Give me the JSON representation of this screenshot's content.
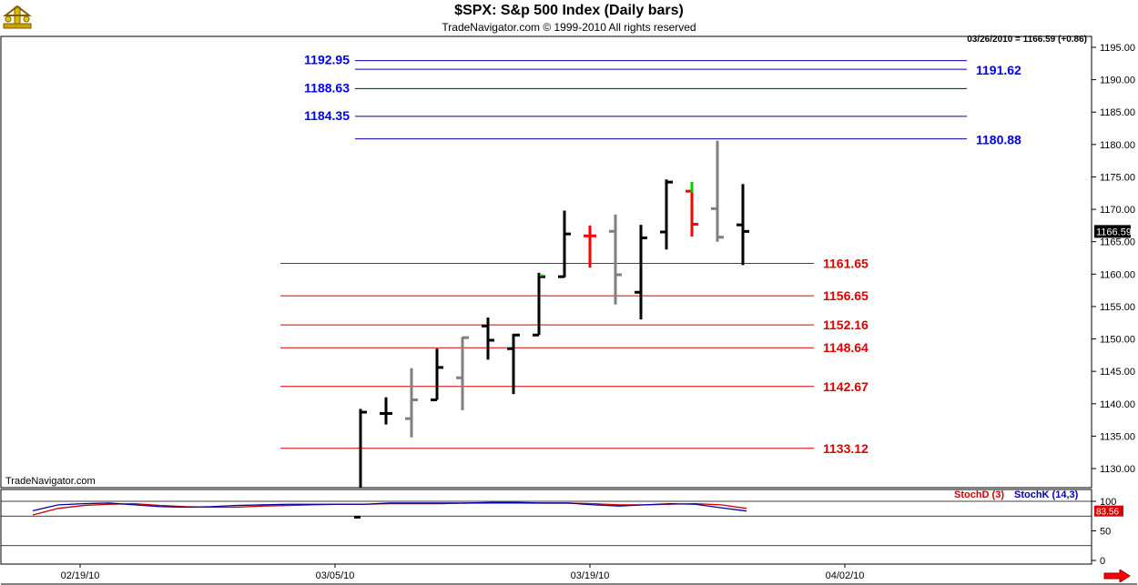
{
  "header": {
    "title": "$SPX:  S&p 500 Index  (Daily bars)",
    "copyright": "TradeNavigator.com © 1999-2010 All rights reserved",
    "readout": "03/26/2010 = 1166.59 (+0.86)",
    "brand": "TradeNavigator.com"
  },
  "colors": {
    "up_bar": "#000000",
    "down_bar": "#808080",
    "red_bar": "#ff0000",
    "resistance": "#0000aa",
    "resistance_label": "#0000ee",
    "support": "#dd0000",
    "support_label": "#dd0000",
    "stoch_d": "#cc0000",
    "stoch_k": "#0000aa",
    "accent_green": "#00cc00"
  },
  "icons": {
    "logo": "trade-navigator-logo-icon",
    "nav": "scroll-right-arrow-icon"
  },
  "chart_data": [
    {
      "type": "ohlc",
      "title": "$SPX:  S&p 500 Index  (Daily bars)",
      "ylim": [
        1126,
        1197
      ],
      "y_ticks": [
        1130,
        1135,
        1140,
        1145,
        1150,
        1155,
        1160,
        1165,
        1170,
        1175,
        1180,
        1185,
        1190,
        1195
      ],
      "y_tick_labels": [
        "1130.00",
        "1135.00",
        "1140.00",
        "1145.00",
        "1150.00",
        "1155.00",
        "1160.00",
        "1165.00",
        "1170.00",
        "1175.00",
        "1180.00",
        "1185.00",
        "1190.00",
        "1195.00"
      ],
      "x_tick_labels": [
        {
          "label": "02/19/10",
          "day": 0
        },
        {
          "label": "03/05/10",
          "day": 10
        },
        {
          "label": "03/19/10",
          "day": 20
        },
        {
          "label": "04/02/10",
          "day": 30
        }
      ],
      "last_value_label": "1166.59",
      "bars": [
        {
          "day": 11,
          "o": 1122.5,
          "h": 1139.2,
          "l": 1122.5,
          "c": 1138.7,
          "color": "up"
        },
        {
          "day": 12,
          "o": 1138.5,
          "h": 1141.0,
          "l": 1136.8,
          "c": 1138.5,
          "color": "up"
        },
        {
          "day": 13,
          "o": 1137.7,
          "h": 1145.5,
          "l": 1134.8,
          "c": 1140.6,
          "color": "down"
        },
        {
          "day": 14,
          "o": 1140.6,
          "h": 1148.5,
          "l": 1140.6,
          "c": 1145.6,
          "color": "up"
        },
        {
          "day": 15,
          "o": 1144.0,
          "h": 1150.3,
          "l": 1139.0,
          "c": 1150.2,
          "color": "down"
        },
        {
          "day": 16,
          "o": 1152.0,
          "h": 1153.3,
          "l": 1146.8,
          "c": 1149.8,
          "color": "up"
        },
        {
          "day": 17,
          "o": 1148.5,
          "h": 1150.8,
          "l": 1141.5,
          "c": 1150.6,
          "color": "up"
        },
        {
          "day": 18,
          "o": 1150.6,
          "h": 1160.2,
          "l": 1150.6,
          "c": 1159.6,
          "color": "up"
        },
        {
          "day": 19,
          "o": 1159.6,
          "h": 1169.8,
          "l": 1159.5,
          "c": 1166.2,
          "color": "up"
        },
        {
          "day": 20,
          "o": 1165.9,
          "h": 1167.5,
          "l": 1161.0,
          "c": 1165.9,
          "color": "red"
        },
        {
          "day": 21,
          "o": 1166.6,
          "h": 1169.2,
          "l": 1155.3,
          "c": 1159.9,
          "color": "down"
        },
        {
          "day": 22,
          "o": 1157.2,
          "h": 1167.6,
          "l": 1153.0,
          "c": 1165.6,
          "color": "up"
        },
        {
          "day": 23,
          "o": 1166.5,
          "h": 1174.6,
          "l": 1163.8,
          "c": 1174.2,
          "color": "up"
        },
        {
          "day": 24,
          "o": 1172.8,
          "h": 1174.2,
          "l": 1165.8,
          "c": 1167.7,
          "color": "red"
        },
        {
          "day": 25,
          "o": 1170.1,
          "h": 1180.6,
          "l": 1165.0,
          "c": 1165.7,
          "color": "down"
        },
        {
          "day": 26,
          "o": 1167.6,
          "h": 1173.9,
          "l": 1161.4,
          "c": 1166.59,
          "color": "up"
        }
      ],
      "resistance_levels": [
        {
          "value": 1192.95,
          "label": "1192.95",
          "label_side": "left"
        },
        {
          "value": 1191.62,
          "label": "1191.62",
          "label_side": "right"
        },
        {
          "value": 1188.63,
          "label": "1188.63",
          "label_side": "left"
        },
        {
          "value": 1184.35,
          "label": "1184.35",
          "label_side": "left"
        },
        {
          "value": 1180.88,
          "label": "1180.88",
          "label_side": "right"
        }
      ],
      "support_levels": [
        {
          "value": 1161.65,
          "label": "1161.65"
        },
        {
          "value": 1156.65,
          "label": "1156.65"
        },
        {
          "value": 1152.16,
          "label": "1152.16"
        },
        {
          "value": 1148.64,
          "label": "1148.64"
        },
        {
          "value": 1142.67,
          "label": "1142.67"
        },
        {
          "value": 1133.12,
          "label": "1133.12"
        }
      ]
    },
    {
      "type": "line",
      "title": "Stochastic",
      "ylim": [
        0,
        100
      ],
      "y_ticks": [
        0,
        50,
        100
      ],
      "y_tick_labels": [
        "0",
        "50",
        "100"
      ],
      "legend": [
        "StochD (3)",
        "StochK (14,3)"
      ],
      "last_value_label": "83.56",
      "series": [
        {
          "name": "StochD (3)",
          "x": [
            -2,
            -1,
            0,
            1,
            2,
            3,
            4,
            5,
            6,
            7,
            8,
            9,
            10,
            11,
            12,
            13,
            14,
            15,
            16,
            17,
            18,
            19,
            20,
            21,
            22,
            23,
            24,
            25,
            26
          ],
          "values": [
            77,
            88,
            93,
            95,
            96,
            93,
            91,
            90,
            90,
            92,
            93,
            94,
            95,
            95,
            96,
            96,
            96,
            97,
            97,
            97,
            97,
            97,
            96,
            94,
            94,
            95,
            96,
            94,
            88
          ]
        },
        {
          "name": "StochK (14,3)",
          "x": [
            -2,
            -1,
            0,
            1,
            2,
            3,
            4,
            5,
            6,
            7,
            8,
            9,
            10,
            11,
            12,
            13,
            14,
            15,
            16,
            17,
            18,
            19,
            20,
            21,
            22,
            23,
            24,
            25,
            26
          ],
          "values": [
            84,
            94,
            96,
            97,
            94,
            91,
            90,
            91,
            93,
            94,
            95,
            95,
            95,
            95,
            97,
            97,
            97,
            97,
            98,
            98,
            97,
            97,
            94,
            92,
            94,
            96,
            95,
            89,
            83.56
          ]
        }
      ]
    }
  ]
}
